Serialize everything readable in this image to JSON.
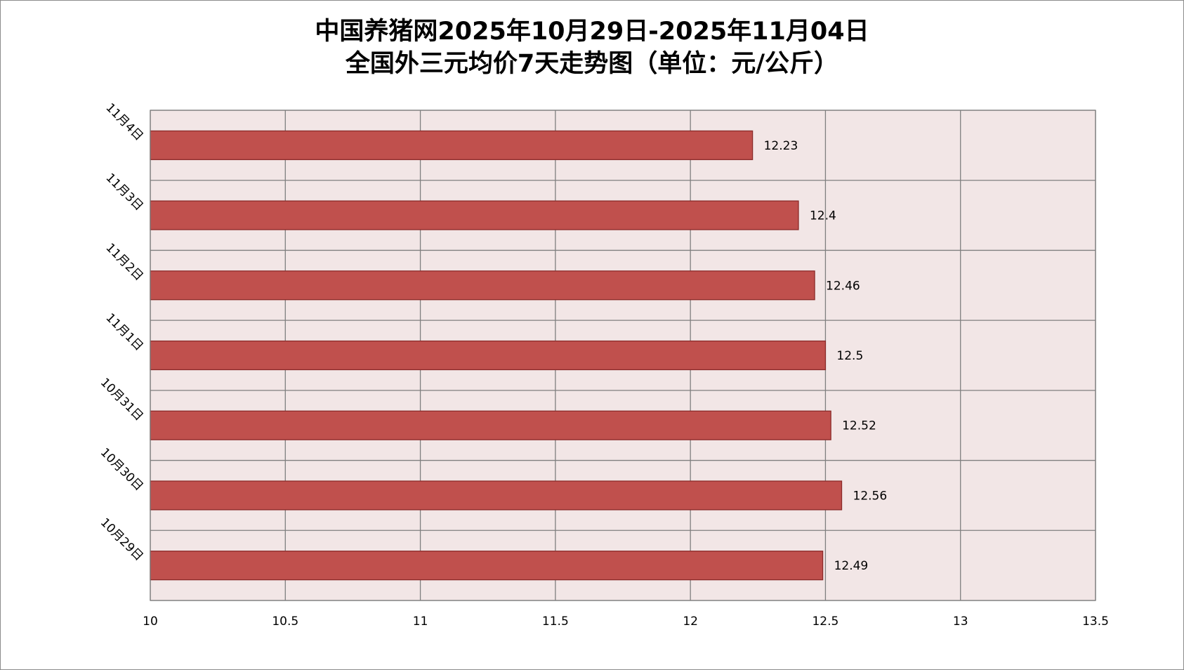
{
  "title_lines": [
    "中国养猪网2025年10月29日-2025年11月04日",
    "全国外三元均价7天走势图（单位：元/公斤）"
  ],
  "colors": {
    "bar_fill": "#c0504d",
    "bar_stroke": "#8b2b2a",
    "plot_background": "#f2e6e6",
    "grid": "#7f7f7f"
  },
  "chart_data": {
    "type": "bar",
    "orientation": "horizontal",
    "title": "中国养猪网2025年10月29日-2025年11月04日 全国外三元均价7天走势图（单位：元/公斤）",
    "categories": [
      "10月29日",
      "10月30日",
      "10月31日",
      "11月1日",
      "11月2日",
      "11月3日",
      "11月4日"
    ],
    "values": [
      12.49,
      12.56,
      12.52,
      12.5,
      12.46,
      12.4,
      12.23
    ],
    "data_labels": [
      "12.49",
      "12.56",
      "12.52",
      "12.5",
      "12.46",
      "12.4",
      "12.23"
    ],
    "x_ticks": [
      "10",
      "10.5",
      "11",
      "11.5",
      "12",
      "12.5",
      "13",
      "13.5"
    ],
    "xlim": [
      10,
      13.5
    ],
    "grid": true,
    "legend": "none"
  }
}
